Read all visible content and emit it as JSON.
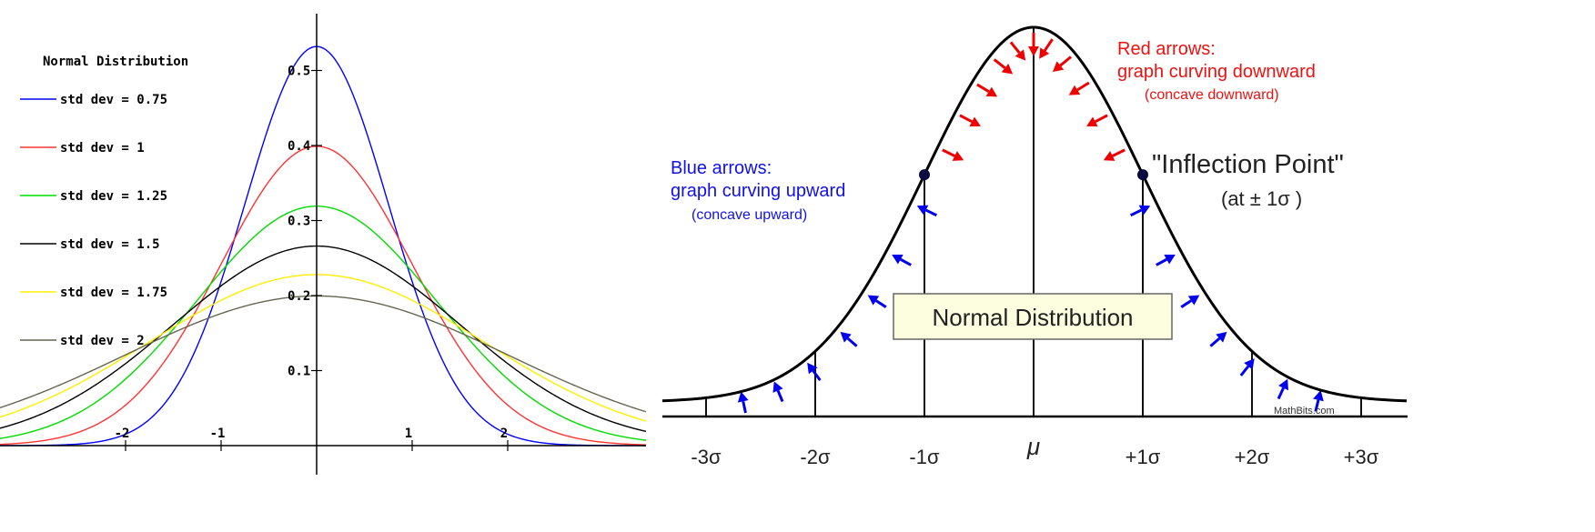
{
  "chart_data": [
    {
      "type": "line",
      "title": "Normal Distribution",
      "xlim": [
        -3.3,
        3.5
      ],
      "ylim": [
        0,
        0.6
      ],
      "x_ticks": [
        -2,
        -1,
        1,
        2
      ],
      "x_tick_labels": [
        "-2",
        "-1",
        "1",
        "2"
      ],
      "y_ticks": [
        0.1,
        0.2,
        0.3,
        0.4,
        0.5
      ],
      "y_tick_labels": [
        "0.1",
        "0.2",
        "0.3",
        "0.4",
        "0.5"
      ],
      "legend_placement": "top-left",
      "series": [
        {
          "name": "std dev = 0.75",
          "mean": 0,
          "std": 0.75,
          "color": "#0000ff"
        },
        {
          "name": "std dev = 1",
          "mean": 0,
          "std": 1,
          "color": "#ff3333"
        },
        {
          "name": "std dev = 1.25",
          "mean": 0,
          "std": 1.25,
          "color": "#00dd00"
        },
        {
          "name": "std dev = 1.5",
          "mean": 0,
          "std": 1.5,
          "color": "#000000"
        },
        {
          "name": "std dev = 1.75",
          "mean": 0,
          "std": 1.75,
          "color": "#ffee00"
        },
        {
          "name": "std dev = 2",
          "mean": 0,
          "std": 2,
          "color": "#666650"
        }
      ]
    },
    {
      "type": "line",
      "title": "Normal Distribution",
      "mean": 0,
      "std": 1,
      "xlim": [
        -3.5,
        3.5
      ],
      "x_tick_labels": [
        "-3σ",
        "-2σ",
        "-1σ",
        "μ",
        "+1σ",
        "+2σ",
        "+3σ"
      ],
      "inflection_points": [
        -1,
        1
      ],
      "annotations": {
        "red_title": "Red arrows:",
        "red_line2": "graph curving downward",
        "red_line3": "(concave downward)",
        "blue_title": "Blue arrows:",
        "blue_line2": "graph curving upward",
        "blue_line3": "(concave upward)",
        "inflection_title": "\"Inflection Point\"",
        "inflection_sub": "(at ± 1σ )",
        "credit": "MathBits.com"
      },
      "colors": {
        "down_arrows": "#ee0000",
        "up_arrows": "#0000ee",
        "curve": "#000000",
        "box_fill": "#fdfde0"
      }
    }
  ]
}
